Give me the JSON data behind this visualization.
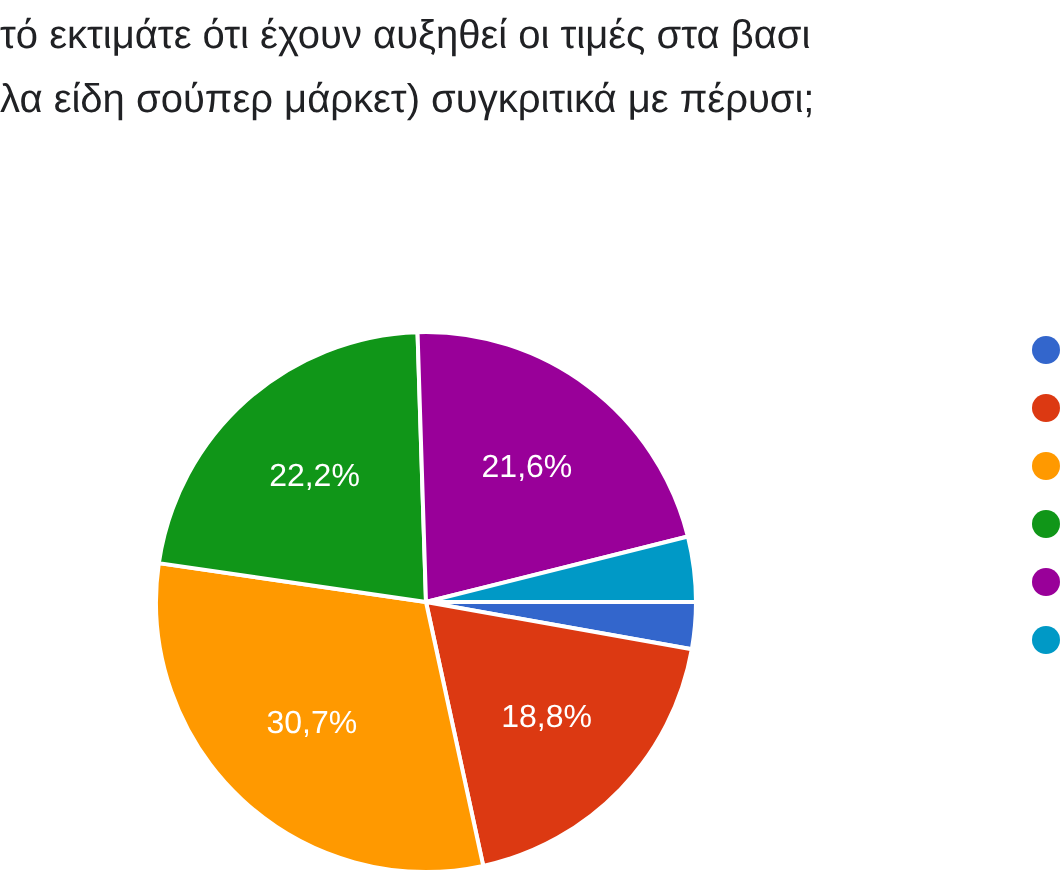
{
  "chart_data": {
    "type": "pie",
    "title": "τό εκτιμάτε ότι έχουν αυξηθεί οι τιμές στα βασι\nλα είδη σούπερ μάρκετ) συγκριτικά με πέρυσι;",
    "categories": [
      null,
      null,
      null,
      null,
      null,
      null
    ],
    "values": [
      2.8,
      18.8,
      30.7,
      22.2,
      21.6,
      3.9
    ],
    "colors": [
      "#3366cc",
      "#dc3912",
      "#ff9900",
      "#109618",
      "#990099",
      "#0099c6"
    ],
    "value_labels": [
      null,
      "18,8%",
      "30,7%",
      "22,2%",
      "21,6%",
      null
    ]
  }
}
